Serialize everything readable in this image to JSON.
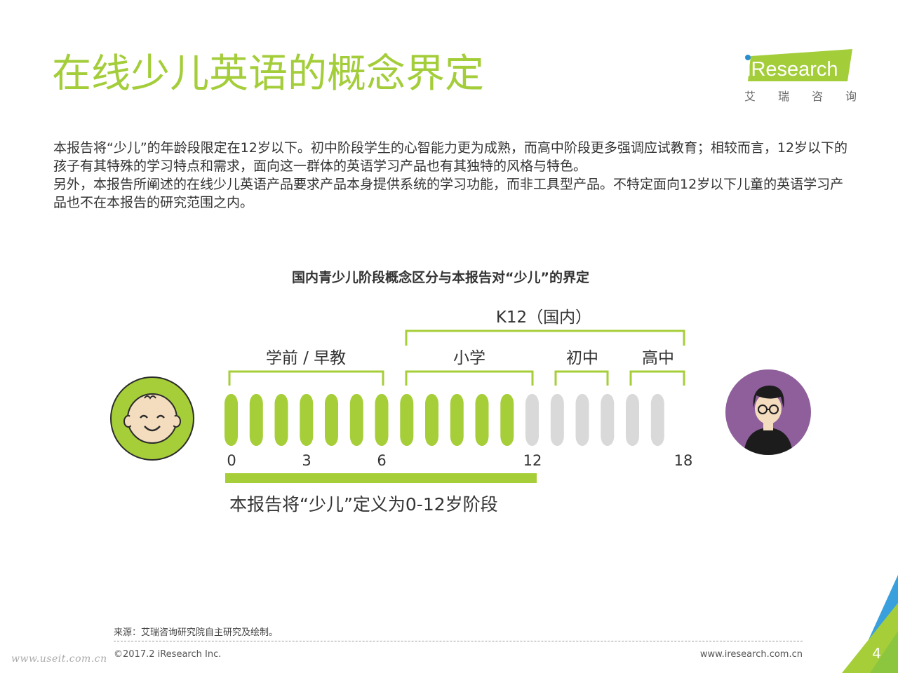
{
  "page": {
    "title": "在线少儿英语的概念界定",
    "number": "4"
  },
  "logo": {
    "brand": "iResearch",
    "subtitle_chars": [
      "艾",
      "瑞",
      "咨",
      "询"
    ],
    "accent_color": "#a3cd39",
    "dot_color": "#2a8dcf"
  },
  "intro": {
    "p1": "本报告将“少儿”的年龄段限定在12岁以下。初中阶段学生的心智能力更为成熟，而高中阶段更多强调应试教育；相较而言，12岁以下的孩子有其特殊的学习特点和需求，面向这一群体的英语学习产品也有其独特的风格与特色。",
    "p2": "另外，本报告所阐述的在线少儿英语产品要求产品本身提供系统的学习功能，而非工具型产品。不特定面向12岁以下儿童的英语学习产品也不在本报告的研究范围之内。"
  },
  "diagram": {
    "title": "国内青少儿阶段概念区分与本报告对“少儿”的界定",
    "k12_label": "K12（国内）",
    "stages": [
      "学前 / 早教",
      "小学",
      "初中",
      "高中"
    ],
    "age_ticks": [
      "0",
      "3",
      "6",
      "12",
      "18"
    ],
    "highlight_until_age": 12,
    "max_age": 18,
    "definition": "本报告将“少儿”定义为0-12岁阶段",
    "colors": {
      "highlight": "#a6ce39",
      "inactive": "#d9d9d9",
      "child_bg": "#a6ce39",
      "adult_bg": "#8e5f9a"
    },
    "icons": [
      "child-face-icon",
      "adult-glasses-icon"
    ]
  },
  "footer": {
    "source": "来源：艾瑞咨询研究院自主研究及绘制。",
    "copyright": "©2017.2 iResearch Inc.",
    "url": "www.iresearch.com.cn",
    "watermark": "www.useit.com.cn"
  }
}
